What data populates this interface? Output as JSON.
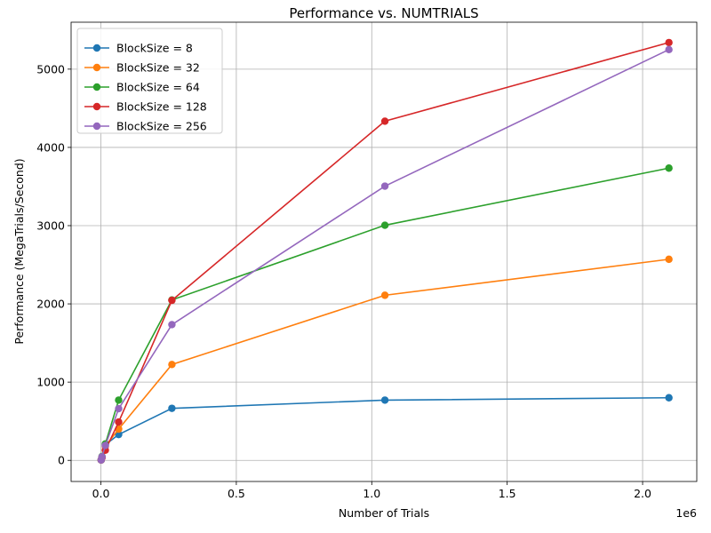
{
  "chart_data": {
    "type": "line",
    "title": "Performance vs. NUMTRIALS",
    "xlabel": "Number of Trials",
    "ylabel": "Performance (MegaTrials/Second)",
    "x_offset_label": "1e6",
    "x_scale": 1000000,
    "xlim": [
      -110000,
      2200000
    ],
    "ylim": [
      -270,
      5600
    ],
    "x_ticks": [
      0.0,
      0.5,
      1.0,
      1.5,
      2.0
    ],
    "x_tick_labels": [
      "0.0",
      "0.5",
      "1.0",
      "1.5",
      "2.0"
    ],
    "y_ticks": [
      0,
      1000,
      2000,
      3000,
      4000,
      5000
    ],
    "y_tick_labels": [
      "0",
      "1000",
      "2000",
      "3000",
      "4000",
      "5000"
    ],
    "grid": true,
    "legend_position": "top-left",
    "x": [
      1024,
      4096,
      16384,
      65536,
      262144,
      1048576,
      2097152
    ],
    "series": [
      {
        "name": "BlockSize = 8",
        "color": "#1f77b4",
        "values": [
          5,
          40,
          200,
          330,
          665,
          770,
          800
        ]
      },
      {
        "name": "BlockSize = 32",
        "color": "#ff7f0e",
        "values": [
          5,
          40,
          180,
          400,
          1225,
          2110,
          2570
        ]
      },
      {
        "name": "BlockSize = 64",
        "color": "#2ca02c",
        "values": [
          5,
          50,
          210,
          770,
          2050,
          3005,
          3735
        ]
      },
      {
        "name": "BlockSize = 128",
        "color": "#d62728",
        "values": [
          5,
          35,
          130,
          490,
          2045,
          4335,
          5340
        ]
      },
      {
        "name": "BlockSize = 256",
        "color": "#9467bd",
        "values": [
          5,
          45,
          190,
          660,
          1735,
          3505,
          5250
        ]
      }
    ]
  }
}
